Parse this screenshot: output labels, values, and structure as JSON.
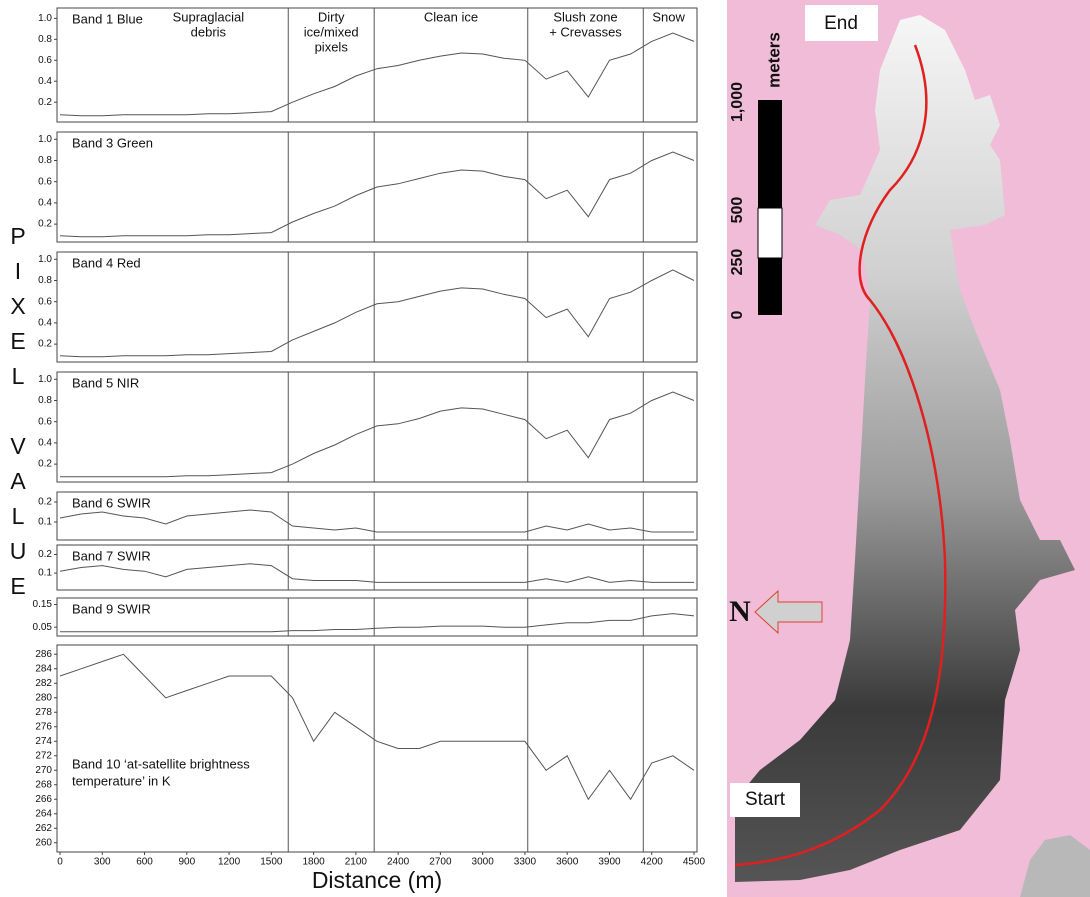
{
  "figure": {
    "ylabel": "PIXEL VALUE",
    "xlabel": "Distance (m)",
    "zone_boundaries": [
      1620,
      2230,
      3320,
      4140
    ],
    "zones": [
      [
        "Supraglacial",
        "debris"
      ],
      [
        "Dirty",
        "ice/mixed",
        "pixels"
      ],
      [
        "Clean ice"
      ],
      [
        "Slush zone",
        "+ Crevasses"
      ],
      [
        "Snow"
      ]
    ]
  },
  "chart_data": [
    {
      "type": "line",
      "title": "Band 1 Blue",
      "color": "#555555",
      "xlim": [
        0,
        4500
      ],
      "ylim": [
        0.03,
        1.08
      ],
      "yticks": [
        0.2,
        0.4,
        0.6,
        0.8,
        {
          "value": 1,
          "label": "1.0"
        }
      ],
      "x": [
        0,
        150,
        300,
        450,
        600,
        750,
        900,
        1050,
        1200,
        1350,
        1500,
        1650,
        1800,
        1950,
        2100,
        2250,
        2400,
        2550,
        2700,
        2850,
        3000,
        3150,
        3300,
        3450,
        3600,
        3750,
        3900,
        4050,
        4200,
        4350,
        4500
      ],
      "values": [
        0.08,
        0.07,
        0.07,
        0.08,
        0.08,
        0.08,
        0.08,
        0.09,
        0.09,
        0.1,
        0.11,
        0.2,
        0.28,
        0.35,
        0.45,
        0.52,
        0.55,
        0.6,
        0.64,
        0.67,
        0.66,
        0.62,
        0.6,
        0.42,
        0.5,
        0.25,
        0.6,
        0.66,
        0.78,
        0.86,
        0.78
      ]
    },
    {
      "type": "line",
      "title": "Band 3 Green",
      "color": "#555555",
      "xlim": [
        0,
        4500
      ],
      "ylim": [
        0.05,
        1.05
      ],
      "yticks": [
        0.2,
        0.4,
        0.6,
        0.8,
        {
          "value": 1,
          "label": "1.0"
        }
      ],
      "x": [
        0,
        150,
        300,
        450,
        600,
        750,
        900,
        1050,
        1200,
        1350,
        1500,
        1650,
        1800,
        1950,
        2100,
        2250,
        2400,
        2550,
        2700,
        2850,
        3000,
        3150,
        3300,
        3450,
        3600,
        3750,
        3900,
        4050,
        4200,
        4350,
        4500
      ],
      "values": [
        0.09,
        0.08,
        0.08,
        0.09,
        0.09,
        0.09,
        0.09,
        0.1,
        0.1,
        0.11,
        0.12,
        0.22,
        0.3,
        0.37,
        0.47,
        0.55,
        0.58,
        0.63,
        0.68,
        0.71,
        0.7,
        0.65,
        0.62,
        0.44,
        0.52,
        0.27,
        0.62,
        0.68,
        0.8,
        0.88,
        0.8
      ]
    },
    {
      "type": "line",
      "title": "Band 4 Red",
      "color": "#555555",
      "xlim": [
        0,
        4500
      ],
      "ylim": [
        0.05,
        1.05
      ],
      "yticks": [
        0.2,
        0.4,
        0.6,
        0.8,
        {
          "value": 1,
          "label": "1.0"
        }
      ],
      "x": [
        0,
        150,
        300,
        450,
        600,
        750,
        900,
        1050,
        1200,
        1350,
        1500,
        1650,
        1800,
        1950,
        2100,
        2250,
        2400,
        2550,
        2700,
        2850,
        3000,
        3150,
        3300,
        3450,
        3600,
        3750,
        3900,
        4050,
        4200,
        4350,
        4500
      ],
      "values": [
        0.09,
        0.08,
        0.08,
        0.09,
        0.09,
        0.09,
        0.1,
        0.1,
        0.11,
        0.12,
        0.13,
        0.24,
        0.32,
        0.4,
        0.5,
        0.58,
        0.6,
        0.65,
        0.7,
        0.73,
        0.72,
        0.67,
        0.63,
        0.45,
        0.53,
        0.27,
        0.63,
        0.69,
        0.8,
        0.9,
        0.8
      ]
    },
    {
      "type": "line",
      "title": "Band 5 NIR",
      "color": "#555555",
      "xlim": [
        0,
        4500
      ],
      "ylim": [
        0.05,
        1.05
      ],
      "yticks": [
        0.2,
        0.4,
        0.6,
        0.8,
        {
          "value": 1,
          "label": "1.0"
        }
      ],
      "x": [
        0,
        150,
        300,
        450,
        600,
        750,
        900,
        1050,
        1200,
        1350,
        1500,
        1650,
        1800,
        1950,
        2100,
        2250,
        2400,
        2550,
        2700,
        2850,
        3000,
        3150,
        3300,
        3450,
        3600,
        3750,
        3900,
        4050,
        4200,
        4350,
        4500
      ],
      "values": [
        0.08,
        0.08,
        0.08,
        0.08,
        0.08,
        0.08,
        0.09,
        0.09,
        0.1,
        0.11,
        0.12,
        0.2,
        0.3,
        0.38,
        0.48,
        0.56,
        0.58,
        0.63,
        0.7,
        0.73,
        0.72,
        0.67,
        0.62,
        0.44,
        0.52,
        0.26,
        0.62,
        0.68,
        0.8,
        0.88,
        0.8
      ]
    },
    {
      "type": "line",
      "title": "Band 6 SWIR",
      "color": "#555555",
      "xlim": [
        0,
        4500
      ],
      "ylim": [
        0.02,
        0.24
      ],
      "yticks": [
        0.1,
        0.2
      ],
      "x": [
        0,
        150,
        300,
        450,
        600,
        750,
        900,
        1050,
        1200,
        1350,
        1500,
        1650,
        1800,
        1950,
        2100,
        2250,
        2400,
        2550,
        2700,
        2850,
        3000,
        3150,
        3300,
        3450,
        3600,
        3750,
        3900,
        4050,
        4200,
        4350,
        4500
      ],
      "values": [
        0.12,
        0.14,
        0.15,
        0.13,
        0.12,
        0.09,
        0.13,
        0.14,
        0.15,
        0.16,
        0.15,
        0.08,
        0.07,
        0.06,
        0.07,
        0.05,
        0.05,
        0.05,
        0.05,
        0.05,
        0.05,
        0.05,
        0.05,
        0.08,
        0.06,
        0.09,
        0.06,
        0.07,
        0.05,
        0.05,
        0.05
      ]
    },
    {
      "type": "line",
      "title": "Band 7 SWIR",
      "color": "#555555",
      "xlim": [
        0,
        4500
      ],
      "ylim": [
        0.02,
        0.24
      ],
      "yticks": [
        0.1,
        0.2
      ],
      "x": [
        0,
        150,
        300,
        450,
        600,
        750,
        900,
        1050,
        1200,
        1350,
        1500,
        1650,
        1800,
        1950,
        2100,
        2250,
        2400,
        2550,
        2700,
        2850,
        3000,
        3150,
        3300,
        3450,
        3600,
        3750,
        3900,
        4050,
        4200,
        4350,
        4500
      ],
      "values": [
        0.11,
        0.13,
        0.14,
        0.12,
        0.11,
        0.08,
        0.12,
        0.13,
        0.14,
        0.15,
        0.14,
        0.07,
        0.06,
        0.06,
        0.06,
        0.05,
        0.05,
        0.05,
        0.05,
        0.05,
        0.05,
        0.05,
        0.05,
        0.07,
        0.05,
        0.08,
        0.05,
        0.06,
        0.05,
        0.05,
        0.05
      ]
    },
    {
      "type": "line",
      "title": "Band 9 SWIR",
      "color": "#555555",
      "xlim": [
        0,
        4500
      ],
      "ylim": [
        0.02,
        0.17
      ],
      "yticks": [
        0.05,
        0.15
      ],
      "x": [
        0,
        150,
        300,
        450,
        600,
        750,
        900,
        1050,
        1200,
        1350,
        1500,
        1650,
        1800,
        1950,
        2100,
        2250,
        2400,
        2550,
        2700,
        2850,
        3000,
        3150,
        3300,
        3450,
        3600,
        3750,
        3900,
        4050,
        4200,
        4350,
        4500
      ],
      "values": [
        0.03,
        0.03,
        0.03,
        0.03,
        0.03,
        0.03,
        0.03,
        0.03,
        0.03,
        0.03,
        0.03,
        0.035,
        0.035,
        0.04,
        0.04,
        0.045,
        0.05,
        0.05,
        0.055,
        0.055,
        0.055,
        0.05,
        0.05,
        0.06,
        0.07,
        0.07,
        0.08,
        0.08,
        0.1,
        0.11,
        0.1
      ]
    },
    {
      "type": "line",
      "title": [
        "Band 10 ‘at-satellite brightness",
        "temperature’ in K"
      ],
      "color": "#555555",
      "xlim": [
        0,
        4500
      ],
      "ylim": [
        259,
        287
      ],
      "yticks": [
        260,
        262,
        264,
        266,
        268,
        270,
        272,
        274,
        276,
        278,
        280,
        282,
        284,
        286
      ],
      "xticks": [
        0,
        300,
        600,
        900,
        1200,
        1500,
        1800,
        2100,
        2400,
        2700,
        3000,
        3300,
        3600,
        3900,
        4200,
        4500
      ],
      "x": [
        0,
        150,
        300,
        450,
        600,
        750,
        900,
        1050,
        1200,
        1350,
        1500,
        1650,
        1800,
        1950,
        2100,
        2250,
        2400,
        2550,
        2700,
        2850,
        3000,
        3150,
        3300,
        3450,
        3600,
        3750,
        3900,
        4050,
        4200,
        4350,
        4500
      ],
      "values": [
        283,
        284,
        285,
        286,
        283,
        280,
        281,
        282,
        283,
        283,
        283,
        280,
        274,
        278,
        276,
        274,
        273,
        273,
        274,
        274,
        274,
        274,
        274,
        270,
        272,
        266,
        270,
        266,
        271,
        272,
        270
      ]
    }
  ],
  "map": {
    "end": "End",
    "start": "Start",
    "north": "N",
    "scale_unit": "meters",
    "scale_labels": [
      "0",
      "250",
      "500",
      "1,000"
    ]
  }
}
